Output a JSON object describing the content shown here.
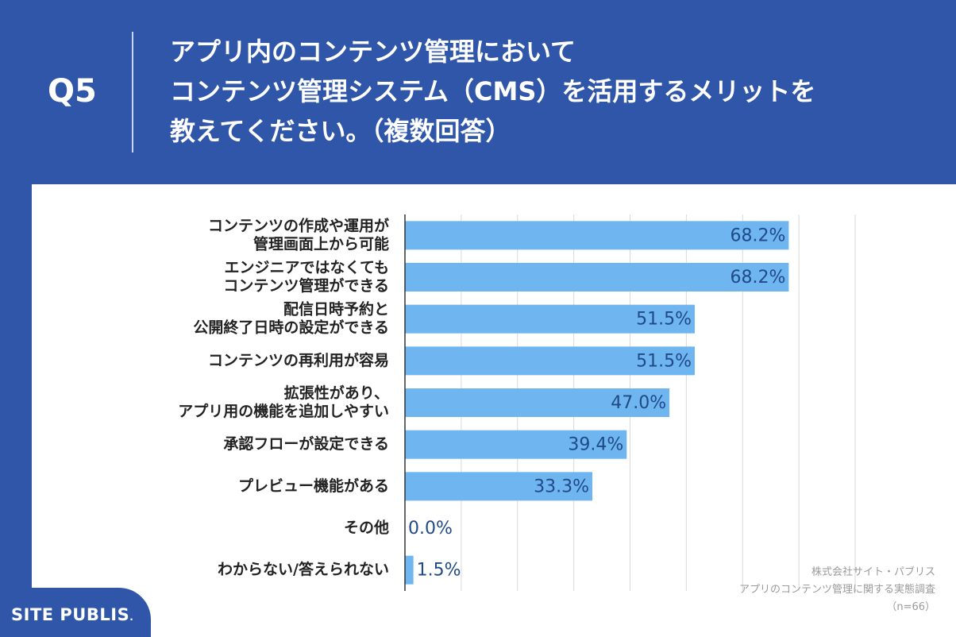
{
  "header": {
    "question_number": "Q5",
    "title_lines": [
      "アプリ内のコンテンツ管理において",
      "コンテンツ管理システム（CMS）を活用するメリットを",
      "教えてください。（複数回答）"
    ]
  },
  "colors": {
    "header_bg": "#2f56a8",
    "bar_fill": "#6fb5f0",
    "label_text": "#222222",
    "value_text": "#1f4a86",
    "gridline": "#d9d9d9"
  },
  "chart_data": {
    "type": "bar",
    "orientation": "horizontal",
    "categories": [
      [
        "コンテンツの作成や運用が",
        "管理画面上から可能"
      ],
      [
        "エンジニアではなくても",
        "コンテンツ管理ができる"
      ],
      [
        "配信日時予約と",
        "公開終了日時の設定ができる"
      ],
      [
        "コンテンツの再利用が容易"
      ],
      [
        "拡張性があり、",
        "アプリ用の機能を追加しやすい"
      ],
      [
        "承認フローが設定できる"
      ],
      [
        "プレビュー機能がある"
      ],
      [
        "その他"
      ],
      [
        "わからない/答えられない"
      ]
    ],
    "values": [
      68.2,
      68.2,
      51.5,
      51.5,
      47.0,
      39.4,
      33.3,
      0.0,
      1.5
    ],
    "value_labels": [
      "68.2%",
      "68.2%",
      "51.5%",
      "51.5%",
      "47.0%",
      "39.4%",
      "33.3%",
      "0.0%",
      "1.5%"
    ],
    "xlim": [
      0,
      80
    ],
    "grid": true
  },
  "footer": {
    "company": "株式会社サイト・パブリス",
    "survey": "アプリのコンテンツ管理に関する実態調査",
    "sample": "（n=66）"
  },
  "logo": {
    "text": "SITE PUBLIS",
    "mark": "."
  }
}
